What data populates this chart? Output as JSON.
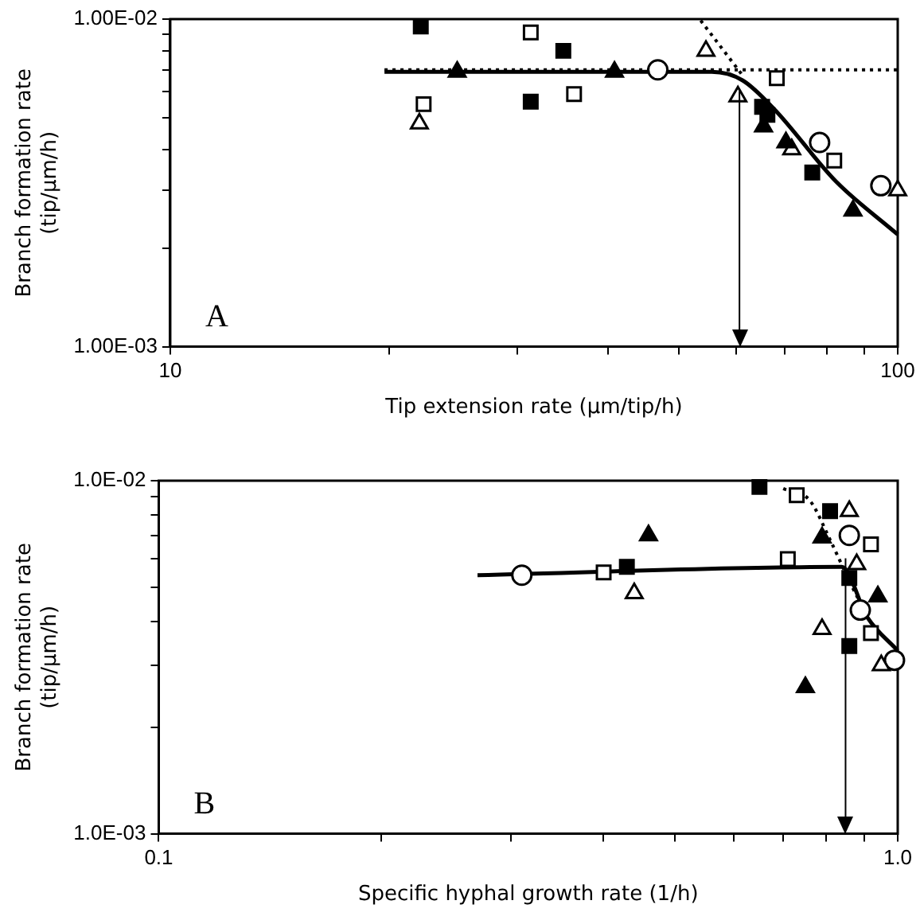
{
  "chart_data": [
    {
      "type": "scatter",
      "xlabel": "Tip extension rate (μm/tip/h)",
      "ylabel": "Branch formation rate\n(tip/μm/h)",
      "log": "xy",
      "grid": false,
      "legend": false,
      "xlim": [
        10,
        100
      ],
      "ylim": [
        0.001,
        0.01
      ],
      "xticks": [
        10,
        {
          "value": 20,
          "label": null
        },
        {
          "value": 30,
          "label": null
        },
        {
          "value": 40,
          "label": null
        },
        {
          "value": 50,
          "label": null
        },
        {
          "value": 60,
          "label": null
        },
        {
          "value": 70,
          "label": null
        },
        {
          "value": 80,
          "label": null
        },
        {
          "value": 90,
          "label": null
        },
        100
      ],
      "yticks": [
        {
          "value": 0.001,
          "label": "1.00E-03"
        },
        {
          "value": 0.002,
          "label": null
        },
        {
          "value": 0.003,
          "label": null
        },
        {
          "value": 0.004,
          "label": null
        },
        {
          "value": 0.005,
          "label": null
        },
        {
          "value": 0.006,
          "label": null
        },
        {
          "value": 0.007,
          "label": null
        },
        {
          "value": 0.008,
          "label": null
        },
        {
          "value": 0.009,
          "label": null
        },
        {
          "value": 0.01,
          "label": "1.00E-02"
        }
      ],
      "annotations": [
        "A"
      ],
      "ref_lines": [
        {
          "axis": "x",
          "value": 60.6,
          "label": null,
          "color": "#000000"
        }
      ],
      "series": [
        {
          "type": "scatter",
          "marker": "square",
          "color": "#000000",
          "x": [
            22.1,
            31.3,
            34.7,
            65.1,
            66.2,
            76.3
          ],
          "values": [
            0.0095,
            0.0056,
            0.008,
            0.0054,
            0.0051,
            0.0034
          ]
        },
        {
          "type": "scatter",
          "marker": "square",
          "color": "#ffffff",
          "x": [
            22.3,
            31.3,
            35.9,
            68.2,
            81.8
          ],
          "values": [
            0.0055,
            0.0091,
            0.0059,
            0.0066,
            0.0037
          ]
        },
        {
          "type": "scatter",
          "marker": "triangle",
          "color": "#000000",
          "x": [
            24.8,
            40.8,
            65.4,
            70.2,
            86.8
          ],
          "values": [
            0.0069,
            0.0069,
            0.0047,
            0.0042,
            0.0026
          ]
        },
        {
          "type": "scatter",
          "marker": "triangle",
          "color": "#ffffff",
          "x": [
            22.0,
            54.5,
            60.3,
            71.5,
            100
          ],
          "values": [
            0.0048,
            0.008,
            0.0058,
            0.004,
            0.003
          ]
        },
        {
          "type": "scatter",
          "marker": "circle",
          "color": "#ffffff",
          "x": [
            46.8,
            78.1,
            94.8
          ],
          "values": [
            0.007,
            0.0042,
            0.0031
          ]
        },
        {
          "type": "line",
          "marker": "none",
          "line_style": "solid",
          "color": "#000000",
          "x": [
            19.7,
            55.5,
            61.2,
            67.7,
            82.2,
            100
          ],
          "values": [
            0.0069,
            0.0069,
            0.0065,
            0.0053,
            0.0032,
            0.0022
          ]
        },
        {
          "type": "line",
          "marker": "none",
          "line_style": "dotted",
          "color": "#000000",
          "x": [
            19.7,
            100
          ],
          "values": [
            0.007,
            0.007
          ]
        },
        {
          "type": "line",
          "marker": "none",
          "line_style": "dotted",
          "color": "#000000",
          "x": [
            53.6,
            61.3
          ],
          "values": [
            0.0099,
            0.0067
          ]
        }
      ]
    },
    {
      "type": "scatter",
      "xlabel": "Specific hyphal growth rate (1/h)",
      "ylabel": "Branch formation rate\n(tip/μm/h)",
      "log": "xy",
      "grid": false,
      "legend": false,
      "xlim": [
        0.1,
        1
      ],
      "ylim": [
        0.001,
        0.01
      ],
      "xticks": [
        0.1,
        {
          "value": 0.2,
          "label": null
        },
        {
          "value": 0.3,
          "label": null
        },
        {
          "value": 0.4,
          "label": null
        },
        {
          "value": 0.5,
          "label": null
        },
        {
          "value": 0.6,
          "label": null
        },
        {
          "value": 0.7,
          "label": null
        },
        {
          "value": 0.8,
          "label": null
        },
        {
          "value": 0.9,
          "label": null
        },
        {
          "value": 1,
          "label": "1.0"
        }
      ],
      "yticks": [
        {
          "value": 0.001,
          "label": "1.0E-03"
        },
        {
          "value": 0.002,
          "label": null
        },
        {
          "value": 0.003,
          "label": null
        },
        {
          "value": 0.004,
          "label": null
        },
        {
          "value": 0.005,
          "label": null
        },
        {
          "value": 0.006,
          "label": null
        },
        {
          "value": 0.007,
          "label": null
        },
        {
          "value": 0.008,
          "label": null
        },
        {
          "value": 0.009,
          "label": null
        },
        {
          "value": 0.01,
          "label": "1.0E-02"
        }
      ],
      "annotations": [
        "B"
      ],
      "ref_lines": [
        {
          "axis": "x",
          "value": 0.85,
          "label": null,
          "color": "#000000"
        }
      ],
      "series": [
        {
          "type": "scatter",
          "marker": "square",
          "color": "#000000",
          "x": [
            0.43,
            0.65,
            0.81,
            0.86,
            0.86
          ],
          "values": [
            0.0057,
            0.0096,
            0.0082,
            0.0053,
            0.0034
          ]
        },
        {
          "type": "scatter",
          "marker": "square",
          "color": "#ffffff",
          "x": [
            0.4,
            0.71,
            0.73,
            0.92,
            0.92
          ],
          "values": [
            0.0055,
            0.006,
            0.0091,
            0.0066,
            0.0037
          ]
        },
        {
          "type": "scatter",
          "marker": "triangle",
          "color": "#000000",
          "x": [
            0.46,
            0.79,
            0.94,
            0.75
          ],
          "values": [
            0.007,
            0.0069,
            0.0047,
            0.0026
          ]
        },
        {
          "type": "scatter",
          "marker": "triangle",
          "color": "#ffffff",
          "x": [
            0.44,
            0.86,
            0.88,
            0.79,
            0.95
          ],
          "values": [
            0.0048,
            0.0082,
            0.0058,
            0.0038,
            0.003
          ]
        },
        {
          "type": "scatter",
          "marker": "circle",
          "color": "#ffffff",
          "x": [
            0.31,
            0.86,
            0.89,
            0.99
          ],
          "values": [
            0.0054,
            0.007,
            0.0043,
            0.0031
          ]
        },
        {
          "type": "line",
          "marker": "none",
          "line_style": "solid",
          "color": "#000000",
          "x": [
            0.27,
            0.84,
            0.91,
            1
          ],
          "values": [
            0.0054,
            0.0057,
            0.0041,
            0.0033
          ]
        },
        {
          "type": "line",
          "marker": "none",
          "line_style": "dotted",
          "color": "#000000",
          "x": [
            0.7,
            0.76,
            0.81,
            0.86,
            0.9
          ],
          "values": [
            0.0095,
            0.0088,
            0.0068,
            0.0052,
            0.0043
          ]
        }
      ]
    }
  ]
}
